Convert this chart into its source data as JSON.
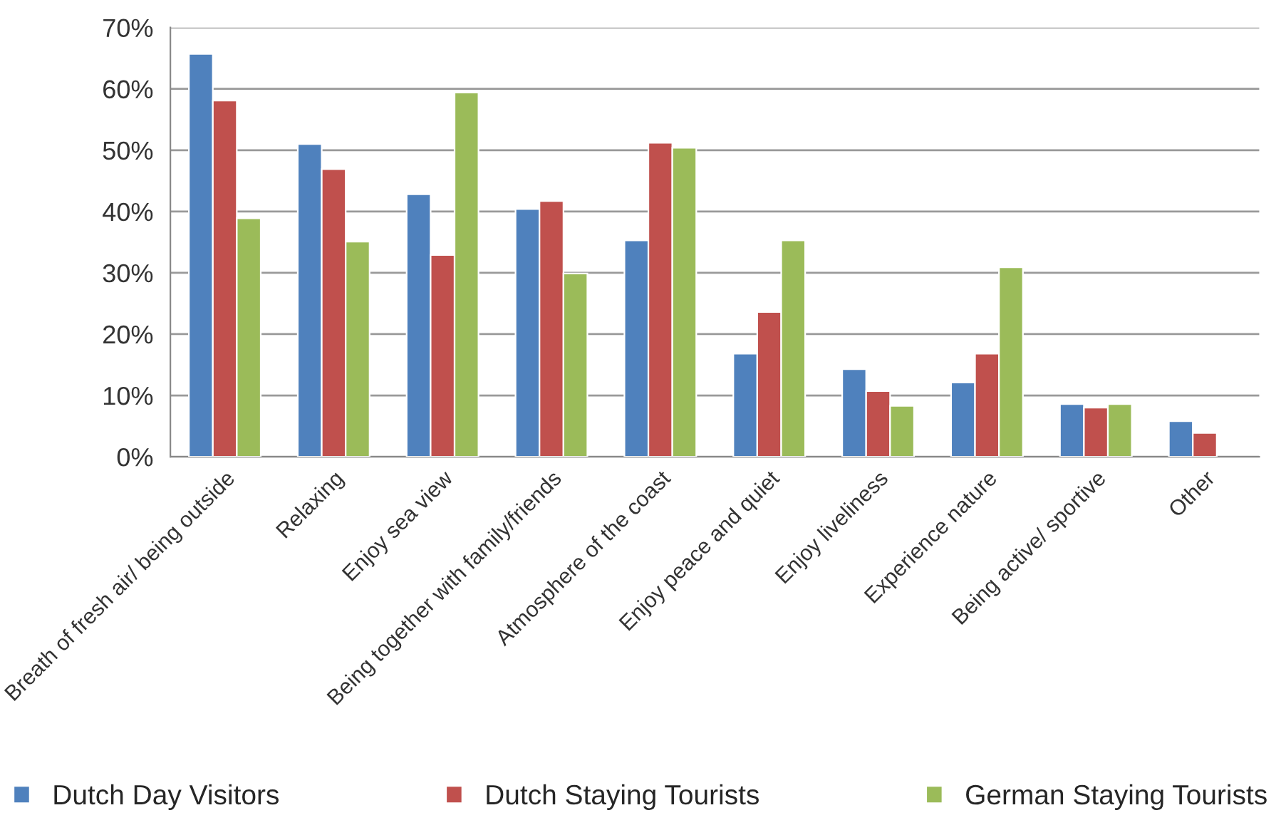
{
  "chart_data": {
    "type": "bar",
    "categories": [
      "Breath of fresh air/ being outside",
      "Relaxing",
      "Enjoy sea view",
      "Being together with family/friends",
      "Atmosphere of the coast",
      "Enjoy peace and quiet",
      "Enjoy liveliness",
      "Experience nature",
      "Being active/ sportive",
      "Other"
    ],
    "series": [
      {
        "name": "Dutch Day Visitors",
        "color": "#4f81bd",
        "values": [
          65.7,
          51.0,
          42.8,
          40.4,
          35.3,
          16.8,
          14.3,
          12.1,
          8.6,
          5.8
        ]
      },
      {
        "name": "Dutch Staying Tourists",
        "color": "#c0504d",
        "values": [
          58.1,
          46.9,
          32.9,
          41.7,
          51.2,
          23.6,
          10.7,
          16.8,
          8.0,
          3.9
        ]
      },
      {
        "name": "German Staying Tourists",
        "color": "#9bbb59",
        "values": [
          38.9,
          35.1,
          59.4,
          29.9,
          50.4,
          35.3,
          8.3,
          30.9,
          8.6,
          null
        ]
      }
    ],
    "ylim": [
      0,
      70
    ],
    "yticks": [
      {
        "value": 0,
        "label": "0%"
      },
      {
        "value": 10,
        "label": "10%"
      },
      {
        "value": 20,
        "label": "20%"
      },
      {
        "value": 30,
        "label": "30%"
      },
      {
        "value": 40,
        "label": "40%"
      },
      {
        "value": 50,
        "label": "50%"
      },
      {
        "value": 60,
        "label": "60%"
      },
      {
        "value": 70,
        "label": "70%"
      }
    ],
    "grid": "y",
    "legend": "bottom"
  }
}
